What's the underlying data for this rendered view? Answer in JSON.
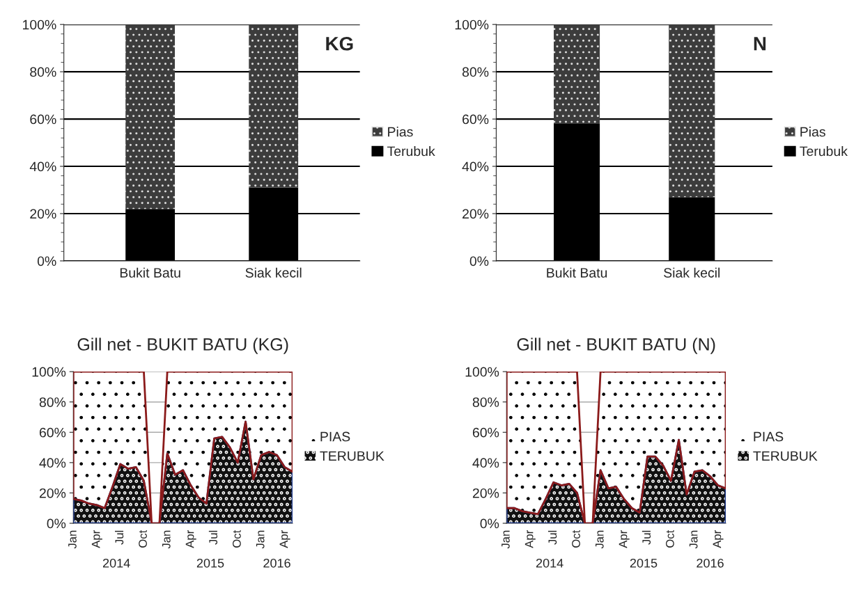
{
  "chart_data": [
    {
      "type": "bar",
      "title": "KG",
      "stacked": true,
      "categories": [
        "Bukit Batu",
        "Siak kecil"
      ],
      "ylim": [
        0,
        100
      ],
      "yticks": [
        {
          "value": 0,
          "label": "0%"
        },
        {
          "value": 20,
          "label": "20%"
        },
        {
          "value": 40,
          "label": "40%"
        },
        {
          "value": 60,
          "label": "60%"
        },
        {
          "value": 80,
          "label": "80%"
        },
        {
          "value": 100,
          "label": "100%"
        }
      ],
      "grid": "y",
      "legend": "right",
      "series": [
        {
          "name": "Terubuk",
          "color": "#000000",
          "values": [
            22,
            31
          ]
        },
        {
          "name": "Pias",
          "color": "#3c3c3c",
          "values": [
            78,
            69
          ]
        }
      ]
    },
    {
      "type": "bar",
      "title": "N",
      "stacked": true,
      "categories": [
        "Bukit Batu",
        "Siak kecil"
      ],
      "ylim": [
        0,
        100
      ],
      "yticks": [
        {
          "value": 0,
          "label": "0%"
        },
        {
          "value": 20,
          "label": "20%"
        },
        {
          "value": 40,
          "label": "40%"
        },
        {
          "value": 60,
          "label": "60%"
        },
        {
          "value": 80,
          "label": "80%"
        },
        {
          "value": 100,
          "label": "100%"
        }
      ],
      "grid": "y",
      "legend": "right",
      "series": [
        {
          "name": "Terubuk",
          "color": "#000000",
          "values": [
            58,
            27
          ]
        },
        {
          "name": "Pias",
          "color": "#3c3c3c",
          "values": [
            42,
            73
          ]
        }
      ]
    },
    {
      "type": "area",
      "title": "Gill net - BUKIT BATU (KG)",
      "stacked": true,
      "categories": [
        "Jan",
        null,
        null,
        "Apr",
        null,
        null,
        "Jul",
        null,
        null,
        "Oct",
        null,
        null,
        "Jan",
        null,
        null,
        "Apr",
        null,
        null,
        "Jul",
        null,
        null,
        "Oct",
        null,
        null,
        "Jan",
        null,
        null,
        "Apr",
        null
      ],
      "annotations": [
        "2014",
        "2015",
        "2016"
      ],
      "ylim": [
        0,
        100
      ],
      "yticks": [
        {
          "value": 0,
          "label": "0%"
        },
        {
          "value": 20,
          "label": "20%"
        },
        {
          "value": 40,
          "label": "40%"
        },
        {
          "value": 60,
          "label": "60%"
        },
        {
          "value": 80,
          "label": "80%"
        },
        {
          "value": 100,
          "label": "100%"
        }
      ],
      "grid": "y",
      "legend": "right",
      "series": [
        {
          "name": "TERUBUK",
          "color": "#111111",
          "values": [
            16,
            15,
            13,
            12,
            10,
            24,
            39,
            36,
            37,
            28,
            0,
            0,
            46,
            32,
            35,
            25,
            17,
            13,
            56,
            57,
            50,
            40,
            67,
            29,
            45,
            47,
            45,
            37,
            34
          ]
        },
        {
          "name": "PIAS",
          "color": "#ffffff",
          "values": [
            84,
            85,
            87,
            88,
            90,
            76,
            61,
            64,
            63,
            72,
            0,
            0,
            54,
            68,
            65,
            75,
            83,
            87,
            44,
            43,
            50,
            60,
            33,
            71,
            55,
            53,
            55,
            63,
            66
          ]
        }
      ]
    },
    {
      "type": "area",
      "title": "Gill net - BUKIT BATU (N)",
      "stacked": true,
      "categories": [
        "Jan",
        null,
        null,
        "Apr",
        null,
        null,
        "Jul",
        null,
        null,
        "Oct",
        null,
        null,
        "Jan",
        null,
        null,
        "Apr",
        null,
        null,
        "Jul",
        null,
        null,
        "Oct",
        null,
        null,
        "Jan",
        null,
        null,
        "Apr",
        null
      ],
      "annotations": [
        "2014",
        "2015",
        "2016"
      ],
      "ylim": [
        0,
        100
      ],
      "yticks": [
        {
          "value": 0,
          "label": "0%"
        },
        {
          "value": 20,
          "label": "20%"
        },
        {
          "value": 40,
          "label": "40%"
        },
        {
          "value": 60,
          "label": "60%"
        },
        {
          "value": 80,
          "label": "80%"
        },
        {
          "value": 100,
          "label": "100%"
        }
      ],
      "grid": "y",
      "legend": "right",
      "series": [
        {
          "name": "TERUBUK",
          "color": "#111111",
          "values": [
            10,
            10,
            8,
            7,
            6,
            16,
            27,
            25,
            26,
            20,
            0,
            0,
            35,
            23,
            24,
            16,
            10,
            7,
            44,
            44,
            38,
            28,
            55,
            19,
            34,
            35,
            31,
            25,
            23
          ]
        },
        {
          "name": "PIAS",
          "color": "#ffffff",
          "values": [
            90,
            90,
            92,
            93,
            94,
            84,
            73,
            75,
            74,
            80,
            0,
            0,
            65,
            77,
            76,
            84,
            90,
            93,
            56,
            56,
            62,
            72,
            45,
            81,
            66,
            65,
            69,
            75,
            77
          ]
        }
      ]
    }
  ]
}
